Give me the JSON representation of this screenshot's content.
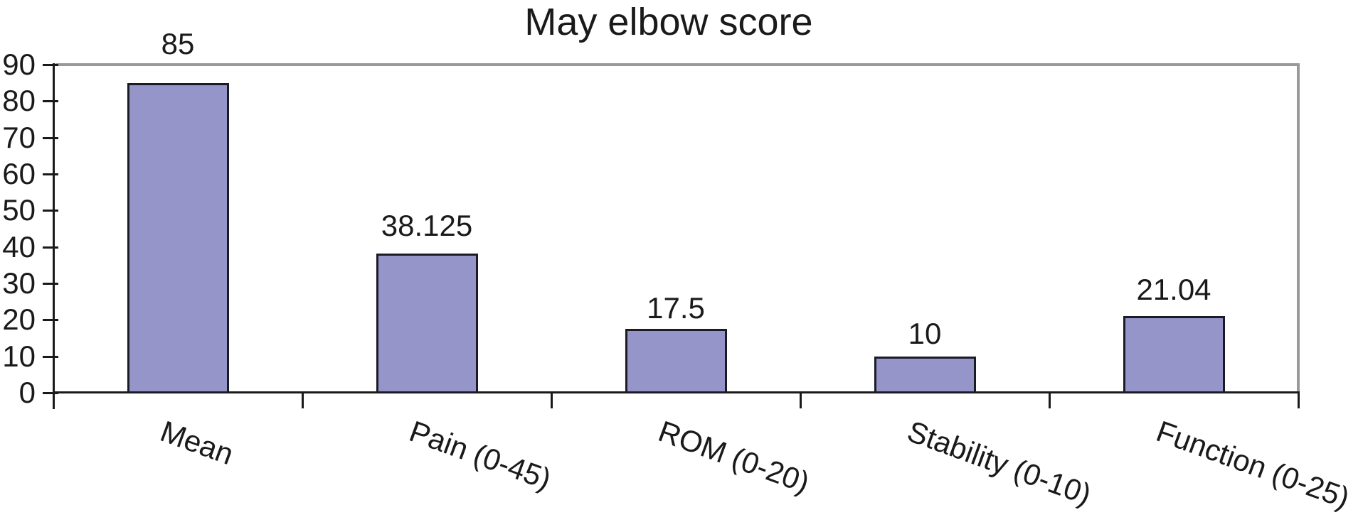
{
  "chart_data": {
    "type": "bar",
    "title": "May elbow score",
    "categories": [
      "Mean",
      "Pain (0-45)",
      "ROM (0-20)",
      "Stability (0-10)",
      "Function (0-25)"
    ],
    "values": [
      85,
      38.125,
      17.5,
      10,
      21.04
    ],
    "data_labels": [
      "85",
      "38.125",
      "17.5",
      "10",
      "21.04"
    ],
    "xlabel": "",
    "ylabel": "",
    "ylim": [
      0,
      90
    ],
    "y_ticks": [
      0,
      10,
      20,
      30,
      40,
      50,
      60,
      70,
      80,
      90
    ],
    "grid": "no interior gridlines; gray plot border on top and right",
    "legend": "none",
    "colors": {
      "bar_fill": "#9695c9",
      "bar_border": "#1b1b26",
      "axis": "#1a1a1a",
      "plot_border_gray": "#999999",
      "text": "#1a1a1a",
      "background": "#ffffff"
    }
  }
}
